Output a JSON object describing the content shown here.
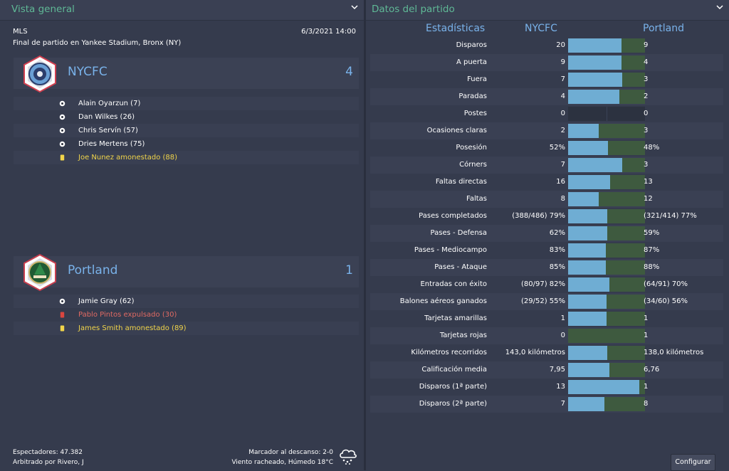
{
  "overview": {
    "title": "Vista general",
    "competition": "MLS",
    "datetime": "6/3/2021 14:00",
    "venue": "Final de partido en Yankee Stadium, Bronx (NY)",
    "home": {
      "name": "NYCFC",
      "score": "4",
      "events": [
        {
          "type": "goal",
          "text": "Alain Oyarzun (7)"
        },
        {
          "type": "goal",
          "text": "Dan Wilkes (26)"
        },
        {
          "type": "goal",
          "text": "Chris Servín (57)"
        },
        {
          "type": "goal",
          "text": "Dries Mertens (75)"
        },
        {
          "type": "yellow",
          "text": "Joe Nunez amonestado (88)"
        }
      ]
    },
    "away": {
      "name": "Portland",
      "score": "1",
      "events": [
        {
          "type": "goal",
          "text": "Jamie Gray (62)"
        },
        {
          "type": "red",
          "text": "Pablo Pintos expulsado (30)"
        },
        {
          "type": "yellow",
          "text": "James Smith amonestado (89)"
        }
      ]
    },
    "spectators": "Espectadores: 47.382",
    "referee": "Arbitrado por Rivero, J",
    "halftime": "Marcador al descanso: 2-0",
    "weather": "Viento racheado, Húmedo 18°C",
    "weather_icon": "cloud-hail-icon"
  },
  "stats": {
    "title": "Datos del partido",
    "header_label": "Estadísticas",
    "home_team": "NYCFC",
    "away_team": "Portland",
    "configure_label": "Configurar",
    "colors": {
      "home_bar": "#6fadd3",
      "away_bar": "#3e5a3f"
    },
    "rows": [
      {
        "label": "Disparos",
        "home": "20",
        "away": "9",
        "home_share": 0.69
      },
      {
        "label": "A puerta",
        "home": "9",
        "away": "4",
        "home_share": 0.69
      },
      {
        "label": "Fuera",
        "home": "7",
        "away": "3",
        "home_share": 0.7
      },
      {
        "label": "Paradas",
        "home": "4",
        "away": "2",
        "home_share": 0.67
      },
      {
        "label": "Postes",
        "home": "0",
        "away": "0",
        "home_share": 0.5
      },
      {
        "label": "Ocasiones claras",
        "home": "2",
        "away": "3",
        "home_share": 0.4
      },
      {
        "label": "Posesión",
        "home": "52%",
        "away": "48%",
        "home_share": 0.52
      },
      {
        "label": "Córners",
        "home": "7",
        "away": "3",
        "home_share": 0.7
      },
      {
        "label": "Faltas directas",
        "home": "16",
        "away": "13",
        "home_share": 0.55
      },
      {
        "label": "Faltas",
        "home": "8",
        "away": "12",
        "home_share": 0.4
      },
      {
        "label": "Pases completados",
        "home": "(388/486) 79%",
        "away": "(321/414) 77%",
        "home_share": 0.51
      },
      {
        "label": "Pases - Defensa",
        "home": "62%",
        "away": "59%",
        "home_share": 0.51
      },
      {
        "label": "Pases - Mediocampo",
        "home": "83%",
        "away": "87%",
        "home_share": 0.49
      },
      {
        "label": "Pases - Ataque",
        "home": "85%",
        "away": "88%",
        "home_share": 0.49
      },
      {
        "label": "Entradas con éxito",
        "home": "(80/97) 82%",
        "away": "(64/91) 70%",
        "home_share": 0.54
      },
      {
        "label": "Balones aéreos ganados",
        "home": "(29/52) 55%",
        "away": "(34/60) 56%",
        "home_share": 0.5
      },
      {
        "label": "Tarjetas amarillas",
        "home": "1",
        "away": "1",
        "home_share": 0.5
      },
      {
        "label": "Tarjetas rojas",
        "home": "0",
        "away": "1",
        "home_share": 0
      },
      {
        "label": "Kilómetros recorridos",
        "home": "143,0 kilómetros",
        "away": "138,0 kilómetros",
        "home_share": 0.51
      },
      {
        "label": "Calificación media",
        "home": "7,95",
        "away": "6,76",
        "home_share": 0.54
      },
      {
        "label": "Disparos (1ª parte)",
        "home": "13",
        "away": "1",
        "home_share": 0.93
      },
      {
        "label": "Disparos (2ª parte)",
        "home": "7",
        "away": "8",
        "home_share": 0.47
      }
    ]
  }
}
